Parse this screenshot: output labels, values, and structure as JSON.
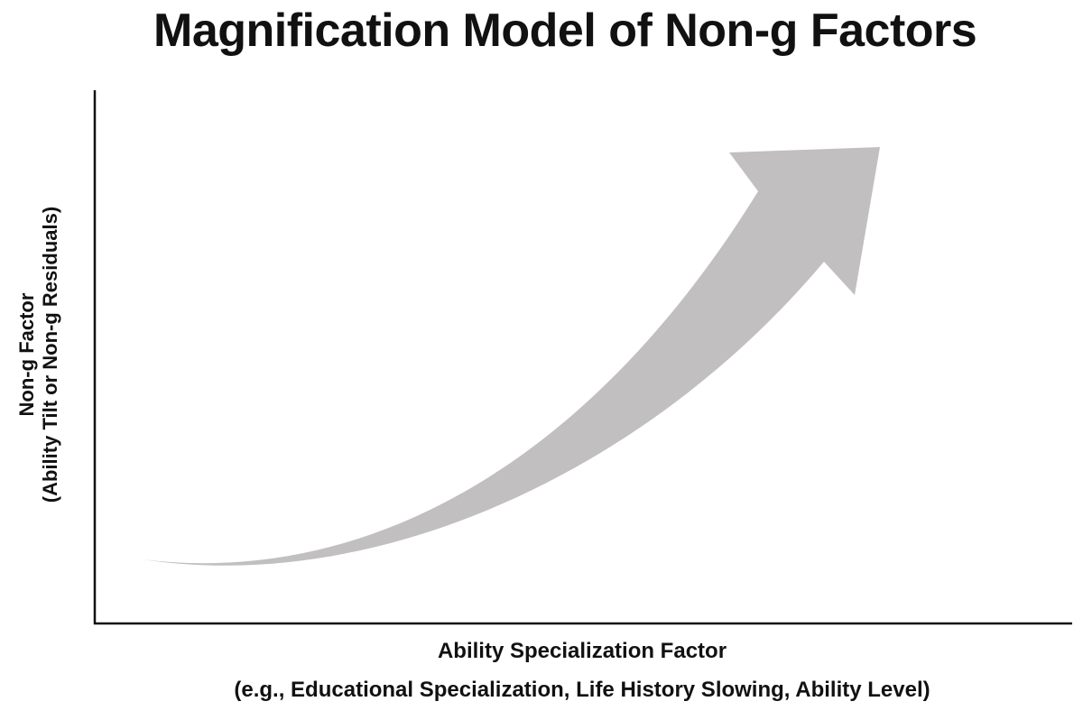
{
  "title": "Magnification Model of Non-g Factors",
  "y_axis": {
    "label": "Non-g Factor",
    "sublabel": "(Ability Tilt or Non-g Residuals)"
  },
  "x_axis": {
    "label": "Ability Specialization Factor",
    "sublabel": "(e.g., Educational Specialization, Life History Slowing, Ability Level)"
  },
  "arrow": {
    "shape": "curved-arrow-icon",
    "color": "#c1bfc0"
  },
  "axis_color": "#111111"
}
